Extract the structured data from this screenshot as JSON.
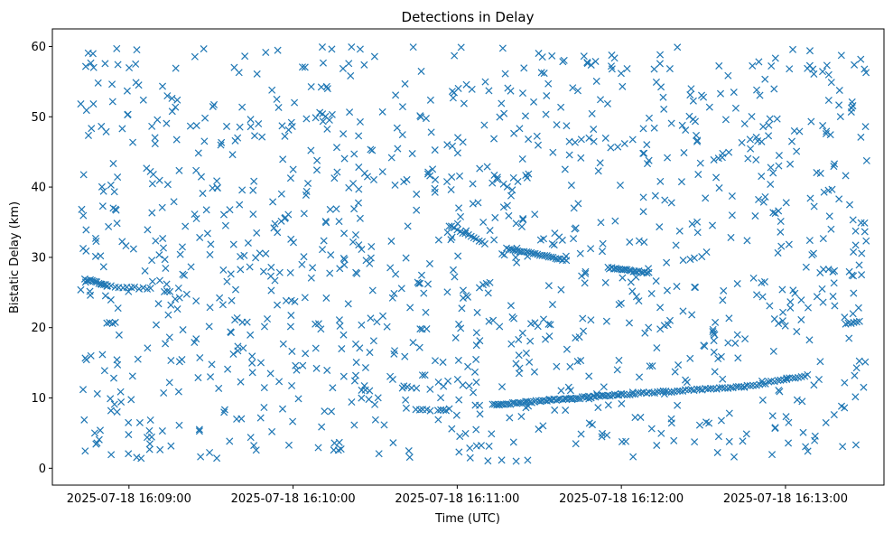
{
  "chart_data": {
    "type": "scatter",
    "title": "Detections in Delay",
    "xlabel": "Time (UTC)",
    "ylabel": "Bistatic Delay (km)",
    "x_type": "time",
    "xlim": [
      "2025-07-18 16:08:32",
      "2025-07-18 16:13:36"
    ],
    "ylim": [
      -2.4,
      62.5
    ],
    "xticks": [
      "2025-07-18 16:09:00",
      "2025-07-18 16:10:00",
      "2025-07-18 16:11:00",
      "2025-07-18 16:12:00",
      "2025-07-18 16:13:00"
    ],
    "yticks": [
      0,
      10,
      20,
      30,
      40,
      50,
      60
    ],
    "grid": false,
    "marker": "x",
    "marker_color": "#1f77b4",
    "time_window": [
      "2025-07-18 16:08:42",
      "2025-07-18 16:13:30"
    ],
    "series": [
      {
        "tracks": [
          {
            "start": [
              "2025-07-18 16:08:44",
              26.9
            ],
            "end": [
              "2025-07-18 16:08:52",
              26.0
            ],
            "count": 14
          },
          {
            "start": [
              "2025-07-18 16:08:52",
              25.9
            ],
            "end": [
              "2025-07-18 16:09:08",
              25.5
            ],
            "count": 12
          },
          {
            "start": [
              "2025-07-18 16:10:45",
              8.3
            ],
            "end": [
              "2025-07-18 16:10:50",
              8.3
            ],
            "count": 5
          },
          {
            "start": [
              "2025-07-18 16:10:53",
              8.3
            ],
            "end": [
              "2025-07-18 16:10:56",
              8.3
            ],
            "count": 4
          },
          {
            "start": [
              "2025-07-18 16:10:25",
              11.1
            ],
            "end": [
              "2025-07-18 16:10:28",
              11.1
            ],
            "count": 3
          },
          {
            "start": [
              "2025-07-18 16:10:40",
              11.5
            ],
            "end": [
              "2025-07-18 16:10:45",
              11.5
            ],
            "count": 4
          },
          {
            "start": [
              "2025-07-18 16:11:13",
              9.0
            ],
            "end": [
              "2025-07-18 16:12:00",
              10.5
            ],
            "count": 60
          },
          {
            "start": [
              "2025-07-18 16:12:00",
              10.5
            ],
            "end": [
              "2025-07-18 16:12:45",
              11.6
            ],
            "count": 45
          },
          {
            "start": [
              "2025-07-18 16:12:45",
              11.6
            ],
            "end": [
              "2025-07-18 16:13:08",
              13.2
            ],
            "count": 22
          },
          {
            "start": [
              "2025-07-18 16:10:57",
              34.5
            ],
            "end": [
              "2025-07-18 16:11:10",
              32.0
            ],
            "count": 14
          },
          {
            "start": [
              "2025-07-18 16:11:18",
              31.3
            ],
            "end": [
              "2025-07-18 16:11:40",
              29.6
            ],
            "count": 28
          },
          {
            "start": [
              "2025-07-18 16:11:55",
              28.5
            ],
            "end": [
              "2025-07-18 16:12:10",
              27.8
            ],
            "count": 22
          },
          {
            "start": [
              "2025-07-18 16:13:22",
              20.6
            ],
            "end": [
              "2025-07-18 16:13:27",
              20.8
            ],
            "count": 6
          },
          {
            "start": [
              "2025-07-18 16:08:52",
              20.7
            ],
            "end": [
              "2025-07-18 16:08:55",
              20.7
            ],
            "count": 4
          },
          {
            "start": [
              "2025-07-18 16:09:13",
              25.1
            ],
            "end": [
              "2025-07-18 16:09:15",
              25.1
            ],
            "count": 3
          },
          {
            "start": [
              "2025-07-18 16:11:08",
              25.8
            ],
            "end": [
              "2025-07-18 16:11:12",
              26.5
            ],
            "count": 4
          }
        ],
        "clutter_count": 1150
      }
    ]
  }
}
